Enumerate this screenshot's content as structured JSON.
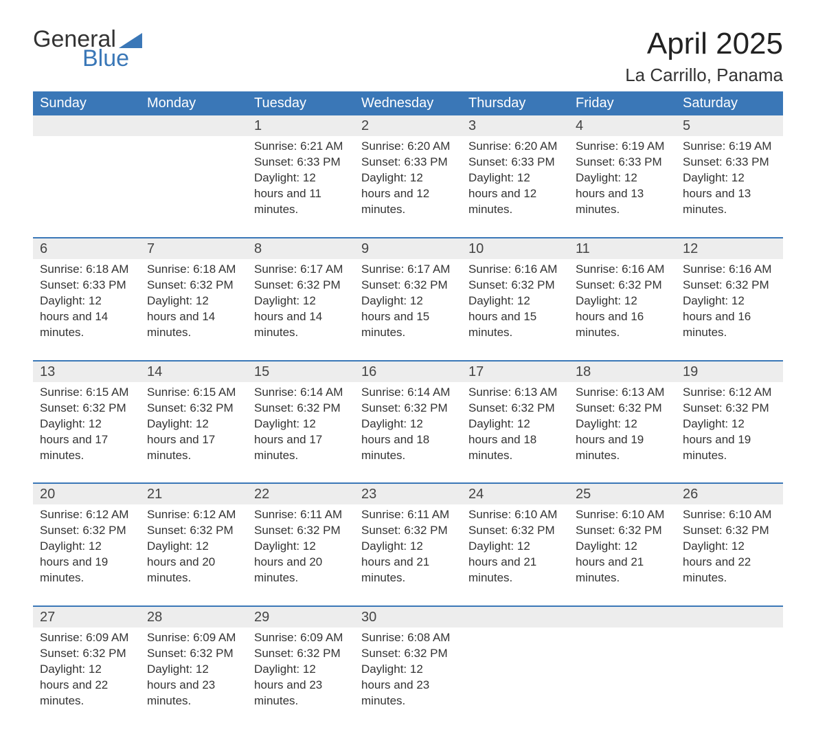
{
  "brand": {
    "word1": "General",
    "word2": "Blue",
    "brand_color": "#3a77b7"
  },
  "title": "April 2025",
  "location": "La Carrillo, Panama",
  "colors": {
    "header_bg": "#3a77b7",
    "header_text": "#ffffff",
    "dayrow_bg": "#ededed",
    "week_divider": "#3a77b7",
    "body_text": "#333333",
    "page_bg": "#ffffff"
  },
  "day_headers": [
    "Sunday",
    "Monday",
    "Tuesday",
    "Wednesday",
    "Thursday",
    "Friday",
    "Saturday"
  ],
  "weeks": [
    [
      null,
      null,
      {
        "n": "1",
        "sr": "Sunrise: 6:21 AM",
        "ss": "Sunset: 6:33 PM",
        "dl": "Daylight: 12 hours and 11 minutes."
      },
      {
        "n": "2",
        "sr": "Sunrise: 6:20 AM",
        "ss": "Sunset: 6:33 PM",
        "dl": "Daylight: 12 hours and 12 minutes."
      },
      {
        "n": "3",
        "sr": "Sunrise: 6:20 AM",
        "ss": "Sunset: 6:33 PM",
        "dl": "Daylight: 12 hours and 12 minutes."
      },
      {
        "n": "4",
        "sr": "Sunrise: 6:19 AM",
        "ss": "Sunset: 6:33 PM",
        "dl": "Daylight: 12 hours and 13 minutes."
      },
      {
        "n": "5",
        "sr": "Sunrise: 6:19 AM",
        "ss": "Sunset: 6:33 PM",
        "dl": "Daylight: 12 hours and 13 minutes."
      }
    ],
    [
      {
        "n": "6",
        "sr": "Sunrise: 6:18 AM",
        "ss": "Sunset: 6:33 PM",
        "dl": "Daylight: 12 hours and 14 minutes."
      },
      {
        "n": "7",
        "sr": "Sunrise: 6:18 AM",
        "ss": "Sunset: 6:32 PM",
        "dl": "Daylight: 12 hours and 14 minutes."
      },
      {
        "n": "8",
        "sr": "Sunrise: 6:17 AM",
        "ss": "Sunset: 6:32 PM",
        "dl": "Daylight: 12 hours and 14 minutes."
      },
      {
        "n": "9",
        "sr": "Sunrise: 6:17 AM",
        "ss": "Sunset: 6:32 PM",
        "dl": "Daylight: 12 hours and 15 minutes."
      },
      {
        "n": "10",
        "sr": "Sunrise: 6:16 AM",
        "ss": "Sunset: 6:32 PM",
        "dl": "Daylight: 12 hours and 15 minutes."
      },
      {
        "n": "11",
        "sr": "Sunrise: 6:16 AM",
        "ss": "Sunset: 6:32 PM",
        "dl": "Daylight: 12 hours and 16 minutes."
      },
      {
        "n": "12",
        "sr": "Sunrise: 6:16 AM",
        "ss": "Sunset: 6:32 PM",
        "dl": "Daylight: 12 hours and 16 minutes."
      }
    ],
    [
      {
        "n": "13",
        "sr": "Sunrise: 6:15 AM",
        "ss": "Sunset: 6:32 PM",
        "dl": "Daylight: 12 hours and 17 minutes."
      },
      {
        "n": "14",
        "sr": "Sunrise: 6:15 AM",
        "ss": "Sunset: 6:32 PM",
        "dl": "Daylight: 12 hours and 17 minutes."
      },
      {
        "n": "15",
        "sr": "Sunrise: 6:14 AM",
        "ss": "Sunset: 6:32 PM",
        "dl": "Daylight: 12 hours and 17 minutes."
      },
      {
        "n": "16",
        "sr": "Sunrise: 6:14 AM",
        "ss": "Sunset: 6:32 PM",
        "dl": "Daylight: 12 hours and 18 minutes."
      },
      {
        "n": "17",
        "sr": "Sunrise: 6:13 AM",
        "ss": "Sunset: 6:32 PM",
        "dl": "Daylight: 12 hours and 18 minutes."
      },
      {
        "n": "18",
        "sr": "Sunrise: 6:13 AM",
        "ss": "Sunset: 6:32 PM",
        "dl": "Daylight: 12 hours and 19 minutes."
      },
      {
        "n": "19",
        "sr": "Sunrise: 6:12 AM",
        "ss": "Sunset: 6:32 PM",
        "dl": "Daylight: 12 hours and 19 minutes."
      }
    ],
    [
      {
        "n": "20",
        "sr": "Sunrise: 6:12 AM",
        "ss": "Sunset: 6:32 PM",
        "dl": "Daylight: 12 hours and 19 minutes."
      },
      {
        "n": "21",
        "sr": "Sunrise: 6:12 AM",
        "ss": "Sunset: 6:32 PM",
        "dl": "Daylight: 12 hours and 20 minutes."
      },
      {
        "n": "22",
        "sr": "Sunrise: 6:11 AM",
        "ss": "Sunset: 6:32 PM",
        "dl": "Daylight: 12 hours and 20 minutes."
      },
      {
        "n": "23",
        "sr": "Sunrise: 6:11 AM",
        "ss": "Sunset: 6:32 PM",
        "dl": "Daylight: 12 hours and 21 minutes."
      },
      {
        "n": "24",
        "sr": "Sunrise: 6:10 AM",
        "ss": "Sunset: 6:32 PM",
        "dl": "Daylight: 12 hours and 21 minutes."
      },
      {
        "n": "25",
        "sr": "Sunrise: 6:10 AM",
        "ss": "Sunset: 6:32 PM",
        "dl": "Daylight: 12 hours and 21 minutes."
      },
      {
        "n": "26",
        "sr": "Sunrise: 6:10 AM",
        "ss": "Sunset: 6:32 PM",
        "dl": "Daylight: 12 hours and 22 minutes."
      }
    ],
    [
      {
        "n": "27",
        "sr": "Sunrise: 6:09 AM",
        "ss": "Sunset: 6:32 PM",
        "dl": "Daylight: 12 hours and 22 minutes."
      },
      {
        "n": "28",
        "sr": "Sunrise: 6:09 AM",
        "ss": "Sunset: 6:32 PM",
        "dl": "Daylight: 12 hours and 23 minutes."
      },
      {
        "n": "29",
        "sr": "Sunrise: 6:09 AM",
        "ss": "Sunset: 6:32 PM",
        "dl": "Daylight: 12 hours and 23 minutes."
      },
      {
        "n": "30",
        "sr": "Sunrise: 6:08 AM",
        "ss": "Sunset: 6:32 PM",
        "dl": "Daylight: 12 hours and 23 minutes."
      },
      null,
      null,
      null
    ]
  ]
}
